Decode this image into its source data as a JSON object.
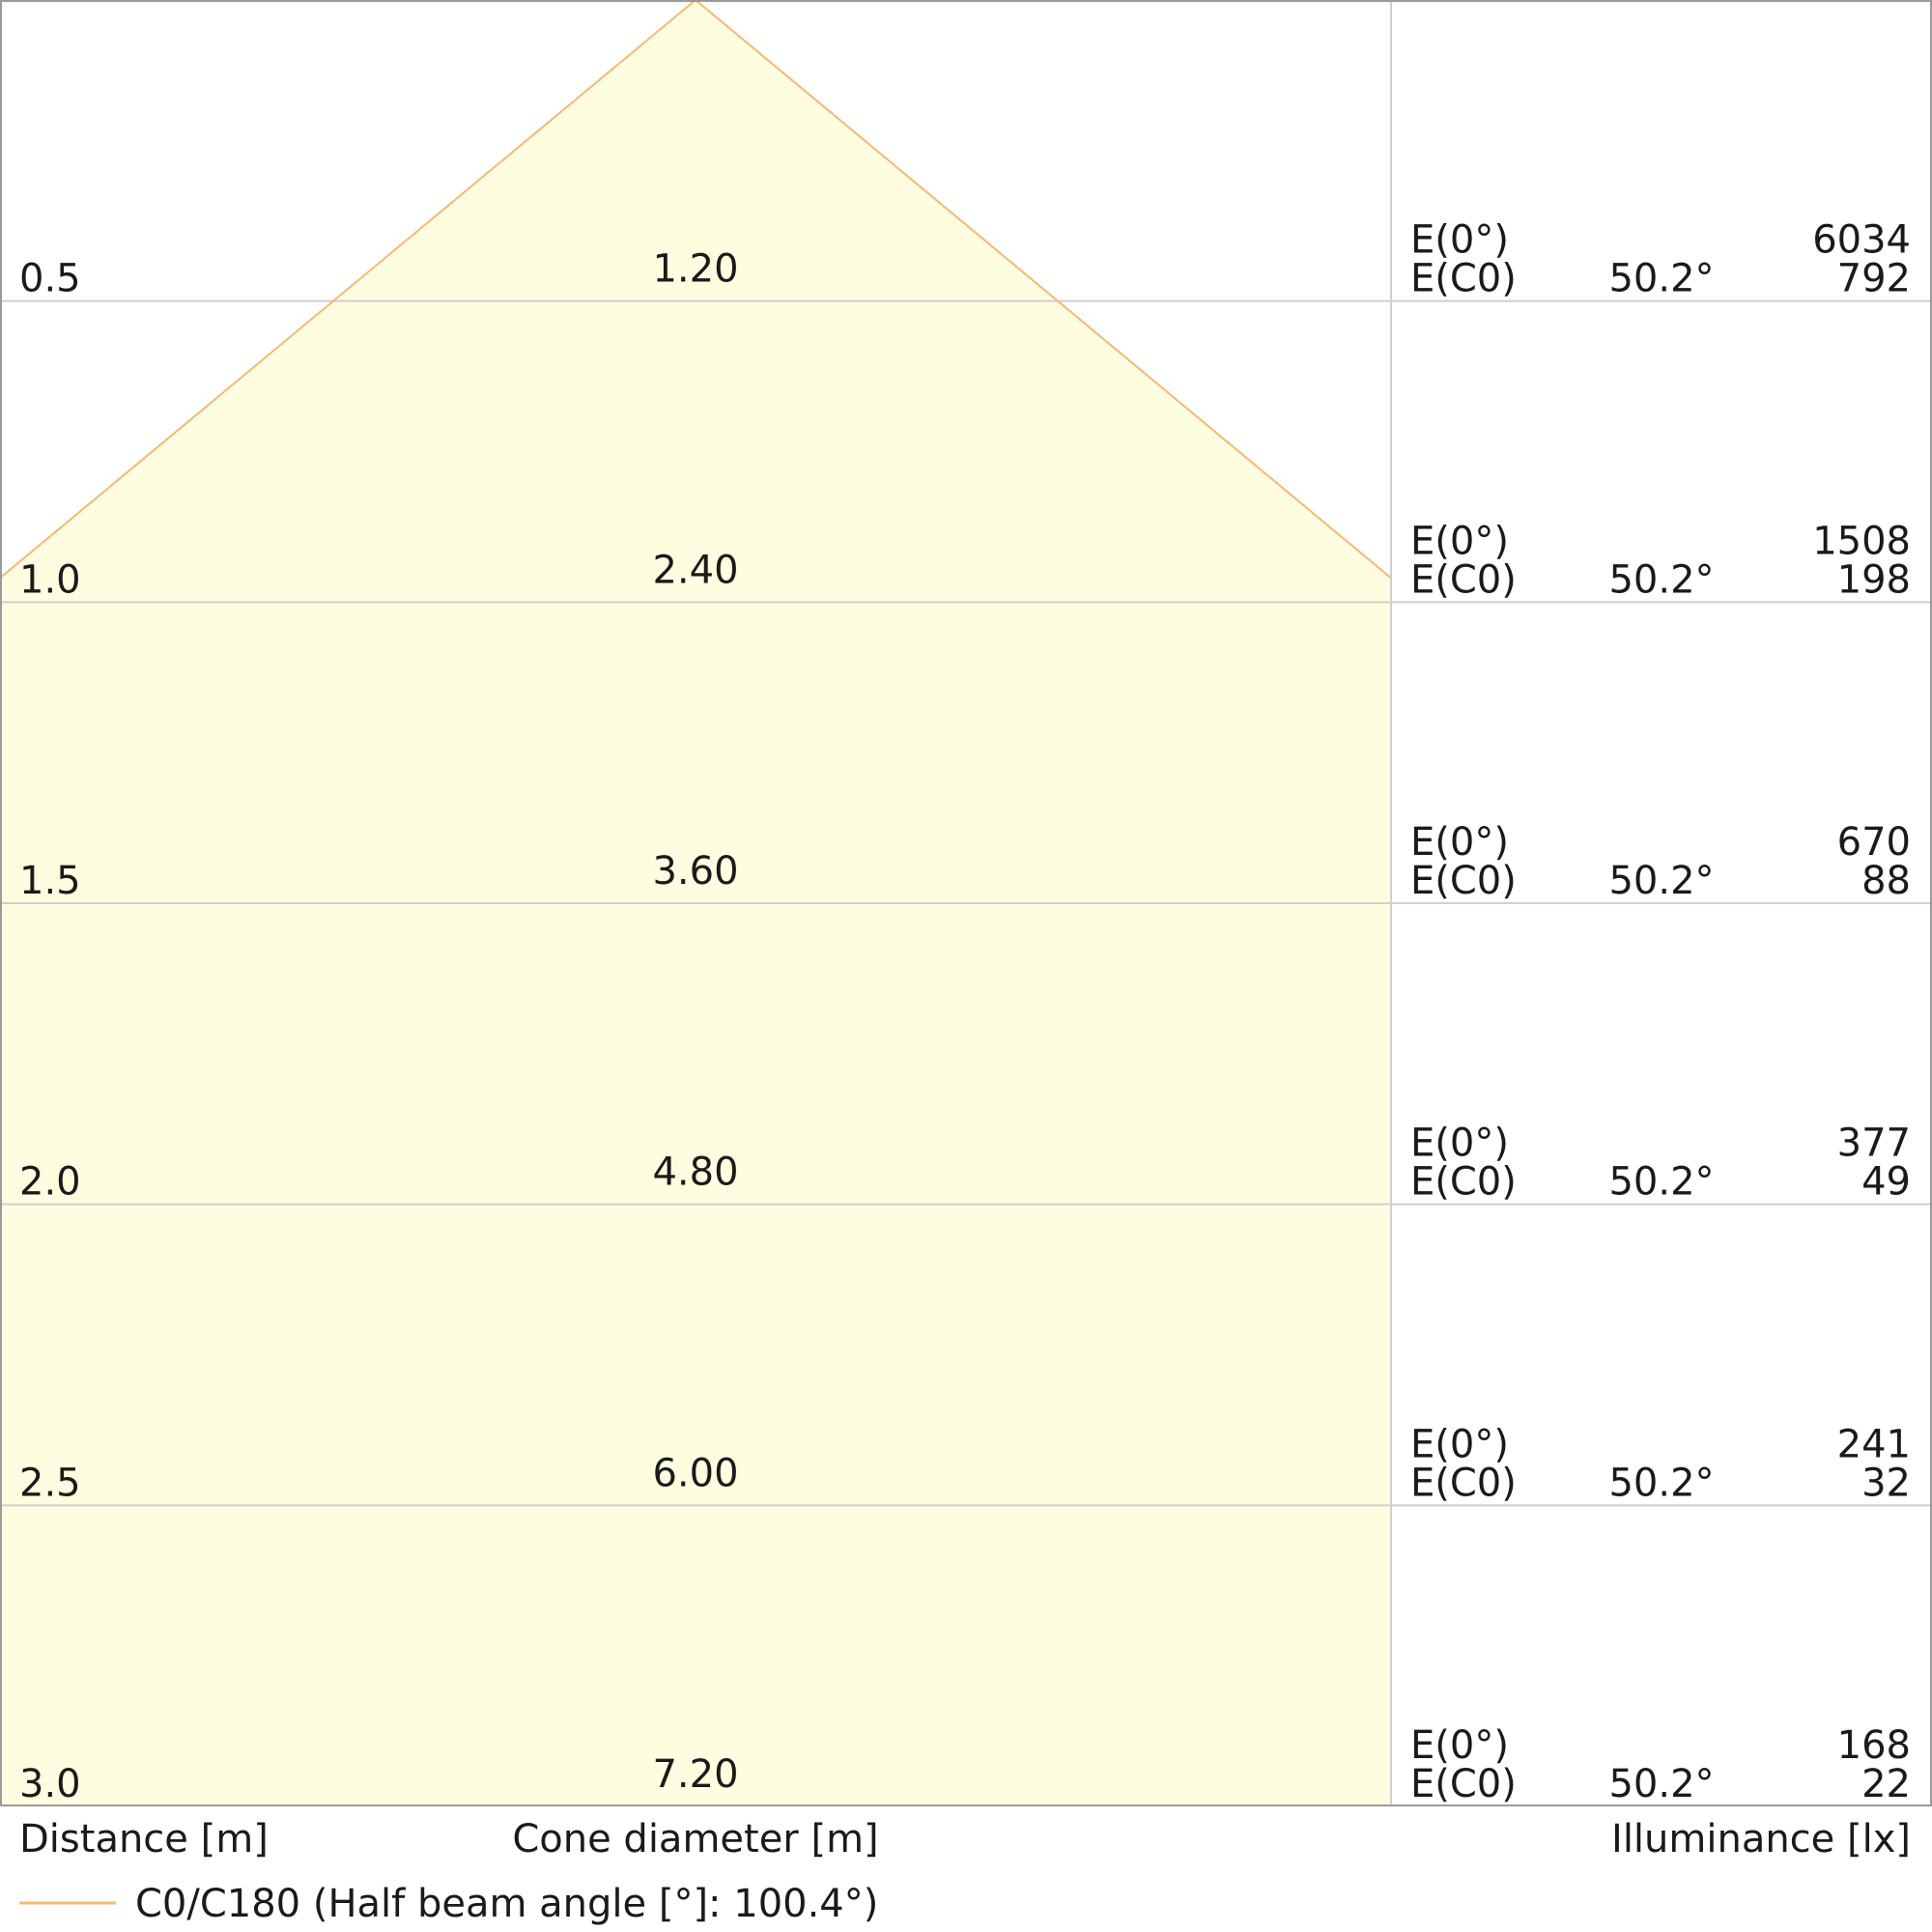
{
  "chart_data": {
    "type": "cone-diagram",
    "beam_color": "#f5b971",
    "fill_color": "#fffde0",
    "rows": [
      {
        "distance": "0.5",
        "diameter": "1.20",
        "e0_label": "E(0°)",
        "ec0_label": "E(C0)",
        "angle": "50.2°",
        "e0": "6034",
        "ec0": "792"
      },
      {
        "distance": "1.0",
        "diameter": "2.40",
        "e0_label": "E(0°)",
        "ec0_label": "E(C0)",
        "angle": "50.2°",
        "e0": "1508",
        "ec0": "198"
      },
      {
        "distance": "1.5",
        "diameter": "3.60",
        "e0_label": "E(0°)",
        "ec0_label": "E(C0)",
        "angle": "50.2°",
        "e0": "670",
        "ec0": "88"
      },
      {
        "distance": "2.0",
        "diameter": "4.80",
        "e0_label": "E(0°)",
        "ec0_label": "E(C0)",
        "angle": "50.2°",
        "e0": "377",
        "ec0": "49"
      },
      {
        "distance": "2.5",
        "diameter": "6.00",
        "e0_label": "E(0°)",
        "ec0_label": "E(C0)",
        "angle": "50.2°",
        "e0": "241",
        "ec0": "32"
      },
      {
        "distance": "3.0",
        "diameter": "7.20",
        "e0_label": "E(0°)",
        "ec0_label": "E(C0)",
        "angle": "50.2°",
        "e0": "168",
        "ec0": "22"
      }
    ],
    "xlabel_distance": "Distance [m]",
    "xlabel_diameter": "Cone diameter [m]",
    "xlabel_illuminance": "Illuminance [lx]",
    "legend": "C0/C180 (Half beam angle [°]: 100.4°)",
    "half_beam_angle": 100.4
  }
}
